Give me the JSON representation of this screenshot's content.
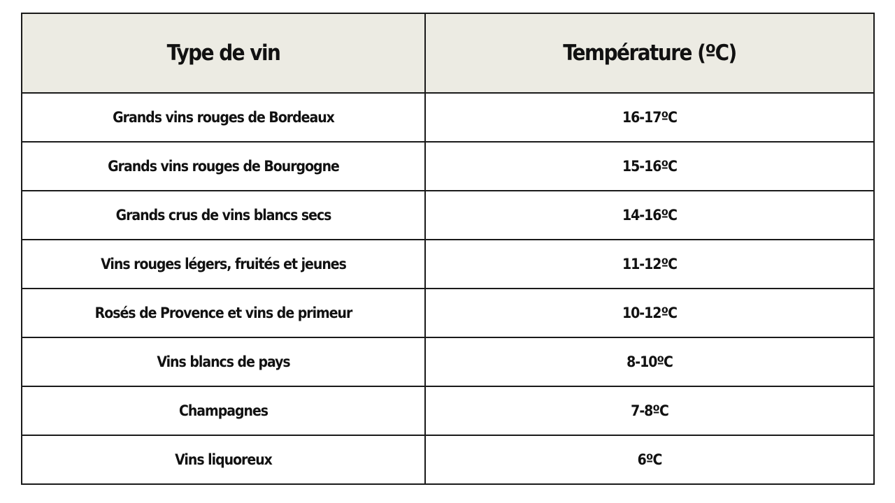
{
  "table": {
    "header": [
      "Type de vin",
      "Température (ºC)"
    ],
    "rows": [
      [
        "Grands vins rouges de Bordeaux",
        "16-17ºC"
      ],
      [
        "Grands vins rouges de Bourgogne",
        "15-16ºC"
      ],
      [
        "Grands crus de vins blancs secs",
        "14-16ºC"
      ],
      [
        "Vins rouges légers, fruités et jeunes",
        "11-12ºC"
      ],
      [
        "Rosés de Provence et vins de primeur",
        "10-12ºC"
      ],
      [
        "Vins blancs de pays",
        "8-10ºC"
      ],
      [
        "Champagnes",
        "7-8ºC"
      ],
      [
        "Vins liquoreux",
        "6ºC"
      ]
    ]
  }
}
